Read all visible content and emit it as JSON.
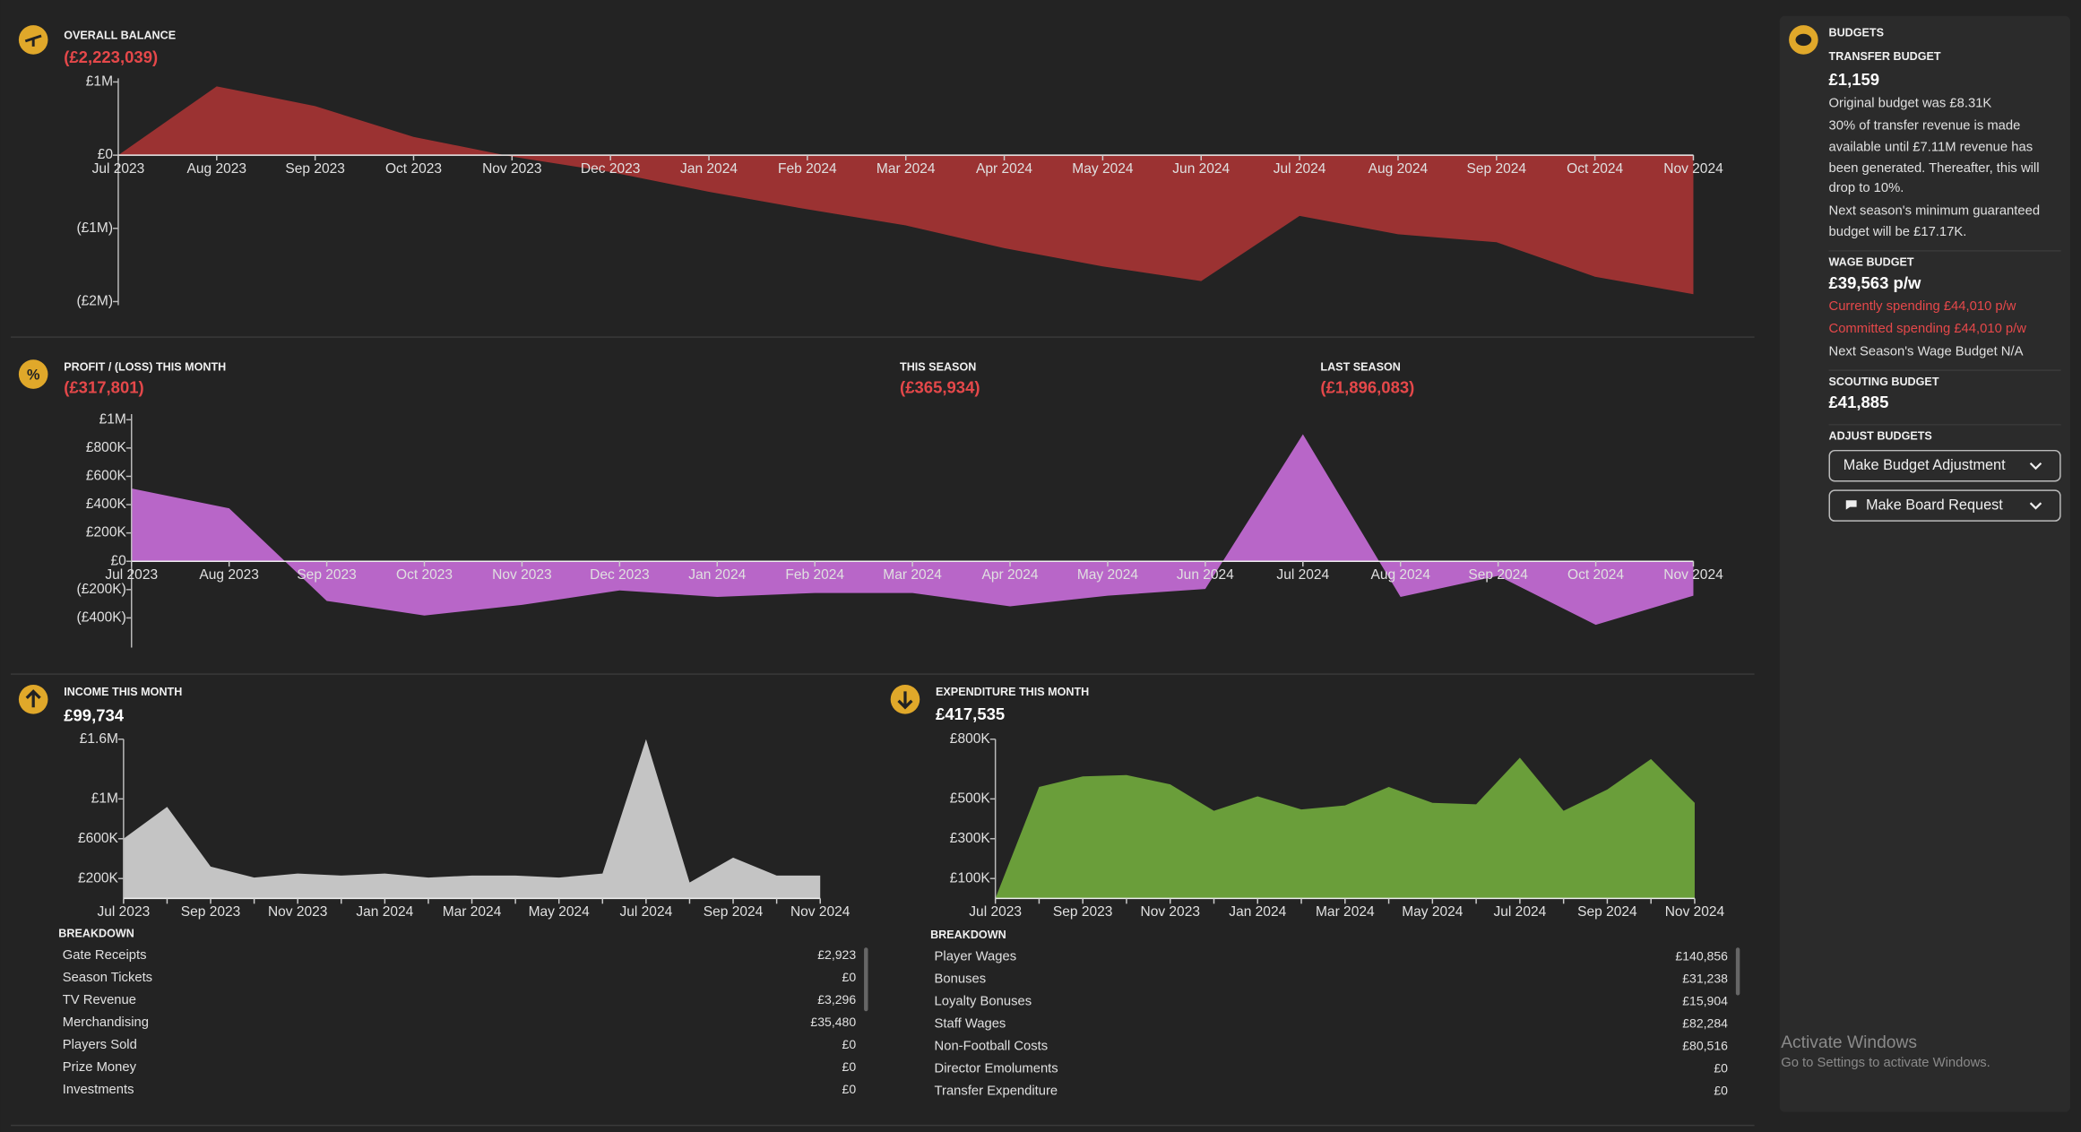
{
  "balance": {
    "title": "OVERALL BALANCE",
    "value": "(£2,223,039)",
    "chart": {
      "type": "area",
      "color": "#9b3232",
      "categories": [
        "Jul 2023",
        "Aug 2023",
        "Sep 2023",
        "Oct 2023",
        "Nov 2023",
        "Dec 2023",
        "Jan 2024",
        "Feb 2024",
        "Mar 2024",
        "Apr 2024",
        "May 2024",
        "Jun 2024",
        "Jul 2024",
        "Aug 2024",
        "Sep 2024",
        "Oct 2024",
        "Nov 2024"
      ],
      "values": [
        0,
        940000,
        670000,
        250000,
        -20000,
        -230000,
        -500000,
        -740000,
        -960000,
        -1270000,
        -1520000,
        -1720000,
        -830000,
        -1080000,
        -1190000,
        -1660000,
        -1900000
      ],
      "ylim": [
        -2050000,
        1050000
      ],
      "yticks": [
        {
          "value": 1000000,
          "label": "£1M"
        },
        {
          "value": 0,
          "label": "£0"
        },
        {
          "value": -1000000,
          "label": "(£1M)"
        },
        {
          "value": -2000000,
          "label": "(£2M)"
        }
      ]
    }
  },
  "profit": {
    "title": "PROFIT / (LOSS) THIS MONTH",
    "value": "(£317,801)",
    "this_season": {
      "title": "THIS SEASON",
      "value": "(£365,934)"
    },
    "last_season": {
      "title": "LAST SEASON",
      "value": "(£1,896,083)"
    },
    "chart": {
      "type": "area",
      "color": "#b866c8",
      "categories": [
        "Jul 2023",
        "Aug 2023",
        "Sep 2023",
        "Oct 2023",
        "Nov 2023",
        "Dec 2023",
        "Jan 2024",
        "Feb 2024",
        "Mar 2024",
        "Apr 2024",
        "May 2024",
        "Jun 2024",
        "Jul 2024",
        "Aug 2024",
        "Sep 2024",
        "Oct 2024",
        "Nov 2024"
      ],
      "values": [
        514000,
        374000,
        -280000,
        -383000,
        -308000,
        -206000,
        -252000,
        -224000,
        -224000,
        -318000,
        -243000,
        -196000,
        897000,
        -252000,
        -103000,
        -449000,
        -243000
      ],
      "ylim": [
        -610000,
        1040000
      ],
      "yticks": [
        {
          "value": 1000000,
          "label": "£1M"
        },
        {
          "value": 800000,
          "label": "£800K"
        },
        {
          "value": 600000,
          "label": "£600K"
        },
        {
          "value": 400000,
          "label": "£400K"
        },
        {
          "value": 200000,
          "label": "£200K"
        },
        {
          "value": 0,
          "label": "£0"
        },
        {
          "value": -200000,
          "label": "(£200K)"
        },
        {
          "value": -400000,
          "label": "(£400K)"
        }
      ]
    }
  },
  "income": {
    "title": "INCOME THIS MONTH",
    "value": "£99,734",
    "chart": {
      "type": "area",
      "color": "#c4c4c4",
      "categories": [
        "Jul 2023",
        null,
        "Sep 2023",
        null,
        "Nov 2023",
        null,
        "Jan 2024",
        null,
        "Mar 2024",
        null,
        "May 2024",
        null,
        "Jul 2024",
        null,
        "Sep 2024",
        null,
        "Nov 2024"
      ],
      "values": [
        600000,
        920000,
        320000,
        210000,
        250000,
        230000,
        250000,
        210000,
        230000,
        230000,
        210000,
        250000,
        1600000,
        160000,
        410000,
        230000,
        230000
      ],
      "ylim": [
        0,
        1600000
      ],
      "yticks": [
        {
          "value": 1600000,
          "label": "£1.6M"
        },
        {
          "value": 1000000,
          "label": "£1M"
        },
        {
          "value": 600000,
          "label": "£600K"
        },
        {
          "value": 200000,
          "label": "£200K"
        }
      ]
    },
    "breakdown": {
      "title": "BREAKDOWN",
      "rows": [
        [
          "Gate Receipts",
          "£2,923"
        ],
        [
          "Season Tickets",
          "£0"
        ],
        [
          "TV Revenue",
          "£3,296"
        ],
        [
          "Merchandising",
          "£35,480"
        ],
        [
          "Players Sold",
          "£0"
        ],
        [
          "Prize Money",
          "£0"
        ],
        [
          "Investments",
          "£0"
        ]
      ]
    }
  },
  "expenditure": {
    "title": "EXPENDITURE THIS MONTH",
    "value": "£417,535",
    "chart": {
      "type": "area",
      "color": "#6a9e3a",
      "categories": [
        "Jul 2023",
        null,
        "Sep 2023",
        null,
        "Nov 2023",
        null,
        "Jan 2024",
        null,
        "Mar 2024",
        null,
        "May 2024",
        null,
        "Jul 2024",
        null,
        "Sep 2024",
        null,
        "Nov 2024"
      ],
      "values": [
        0,
        560000,
        613000,
        620000,
        573000,
        440000,
        513000,
        447000,
        467000,
        560000,
        480000,
        473000,
        707000,
        440000,
        547000,
        700000,
        480000
      ],
      "ylim": [
        0,
        800000
      ],
      "yticks": [
        {
          "value": 800000,
          "label": "£800K"
        },
        {
          "value": 500000,
          "label": "£500K"
        },
        {
          "value": 300000,
          "label": "£300K"
        },
        {
          "value": 100000,
          "label": "£100K"
        }
      ]
    },
    "breakdown": {
      "title": "BREAKDOWN",
      "rows": [
        [
          "Player Wages",
          "£140,856"
        ],
        [
          "Bonuses",
          "£31,238"
        ],
        [
          "Loyalty Bonuses",
          "£15,904"
        ],
        [
          "Staff Wages",
          "£82,284"
        ],
        [
          "Non-Football Costs",
          "£80,516"
        ],
        [
          "Director Emoluments",
          "£0"
        ],
        [
          "Transfer Expenditure",
          "£0"
        ]
      ]
    }
  },
  "budgets": {
    "title": "BUDGETS",
    "transfer": {
      "title": "TRANSFER BUDGET",
      "value": "£1,159",
      "original": "Original budget was £8.31K",
      "note": [
        "30% of transfer revenue is made",
        "available until £7.11M revenue has",
        "been generated. Thereafter, this will",
        "drop to 10%."
      ],
      "next": [
        "Next season's minimum guaranteed",
        "budget will be £17.17K."
      ]
    },
    "wage": {
      "title": "WAGE BUDGET",
      "value": "£39,563 p/w",
      "current": "Currently spending £44,010 p/w",
      "committed": "Committed spending £44,010 p/w",
      "next": "Next Season's Wage Budget N/A"
    },
    "scouting": {
      "title": "SCOUTING BUDGET",
      "value": "£41,885"
    },
    "adjust": {
      "title": "ADJUST BUDGETS",
      "buttons": [
        "Make Budget Adjustment",
        "Make Board Request"
      ]
    }
  },
  "watermark": {
    "title": "Activate Windows",
    "subtitle": "Go to Settings to activate Windows."
  }
}
